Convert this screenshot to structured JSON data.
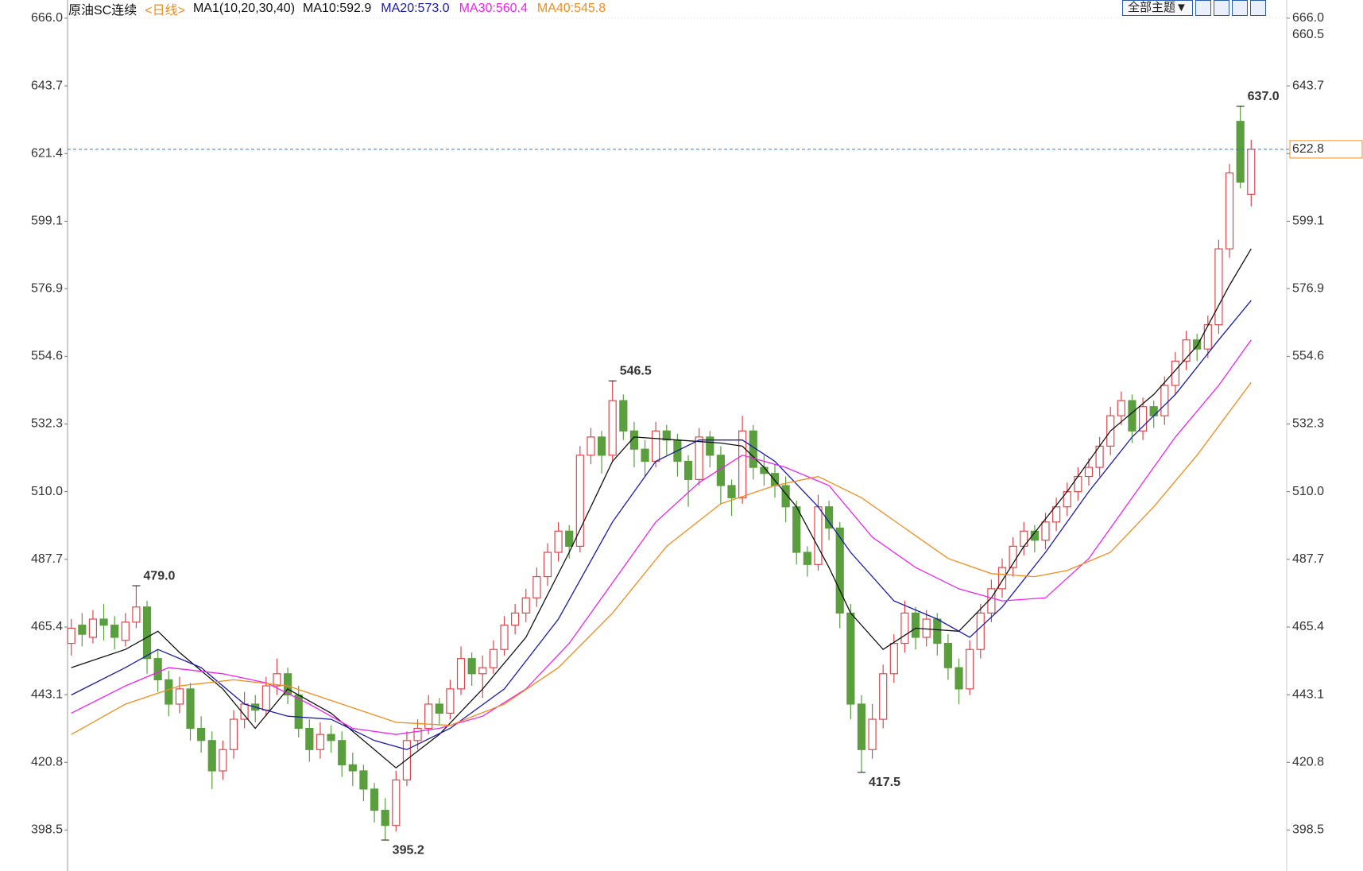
{
  "chart_data": {
    "type": "candlestick",
    "title": "原油SC连续",
    "period": "<日线>",
    "indicator": "MA1(10,20,30,40)",
    "theme_button": "全部主题▼",
    "ylim": [
      385,
      672
    ],
    "yticks": [
      {
        "value": 666,
        "label": "666.0"
      },
      643.7,
      621.4,
      599.1,
      576.9,
      554.6,
      532.3,
      {
        "value": 510,
        "label": "510.0"
      },
      487.7,
      465.4,
      443.1,
      420.8,
      398.5
    ],
    "up_color": "#e0474c",
    "down_color": "#5a9e3e",
    "ohlc": [
      [
        460,
        468,
        456,
        465
      ],
      [
        466,
        470,
        459,
        463
      ],
      [
        462,
        471,
        460,
        468
      ],
      [
        468,
        473,
        461,
        466
      ],
      [
        466,
        469,
        458,
        462
      ],
      [
        461,
        470,
        459,
        467
      ],
      [
        467,
        479,
        465,
        472
      ],
      [
        472,
        474,
        450,
        455
      ],
      [
        455,
        458,
        444,
        448
      ],
      [
        448,
        451,
        436,
        440
      ],
      [
        440,
        449,
        437,
        445
      ],
      [
        445,
        447,
        428,
        432
      ],
      [
        432,
        436,
        424,
        428
      ],
      [
        428,
        431,
        412,
        418
      ],
      [
        418,
        428,
        415,
        425
      ],
      [
        425,
        438,
        422,
        435
      ],
      [
        435,
        444,
        432,
        440
      ],
      [
        440,
        443,
        434,
        438
      ],
      [
        438,
        449,
        436,
        446
      ],
      [
        446,
        455,
        443,
        450
      ],
      [
        450,
        452,
        440,
        443
      ],
      [
        443,
        446,
        429,
        432
      ],
      [
        432,
        435,
        421,
        425
      ],
      [
        425,
        434,
        422,
        430
      ],
      [
        430,
        433,
        424,
        428
      ],
      [
        428,
        431,
        416,
        420
      ],
      [
        420,
        424,
        413,
        418
      ],
      [
        418,
        420,
        408,
        412
      ],
      [
        412,
        414,
        401,
        405
      ],
      [
        405,
        409,
        395.2,
        400
      ],
      [
        400,
        418,
        398,
        415
      ],
      [
        415,
        431,
        413,
        428
      ],
      [
        428,
        435,
        425,
        432
      ],
      [
        432,
        443,
        430,
        440
      ],
      [
        440,
        442,
        433,
        437
      ],
      [
        437,
        448,
        435,
        445
      ],
      [
        445,
        459,
        443,
        455
      ],
      [
        455,
        457,
        446,
        450
      ],
      [
        450,
        456,
        442,
        452
      ],
      [
        452,
        461,
        450,
        458
      ],
      [
        458,
        469,
        456,
        466
      ],
      [
        466,
        473,
        463,
        470
      ],
      [
        470,
        478,
        467,
        475
      ],
      [
        475,
        485,
        472,
        482
      ],
      [
        482,
        493,
        479,
        490
      ],
      [
        490,
        500,
        487,
        497
      ],
      [
        497,
        499,
        488,
        492
      ],
      [
        492,
        525,
        490,
        522
      ],
      [
        522,
        531,
        519,
        528
      ],
      [
        528,
        530,
        516,
        522
      ],
      [
        522,
        546.5,
        520,
        540
      ],
      [
        540,
        542,
        527,
        530
      ],
      [
        530,
        533,
        518,
        524
      ],
      [
        524,
        527,
        515,
        520
      ],
      [
        520,
        533,
        518,
        530
      ],
      [
        530,
        532,
        522,
        527
      ],
      [
        527,
        529,
        515,
        520
      ],
      [
        520,
        522,
        505,
        514
      ],
      [
        514,
        531,
        512,
        528
      ],
      [
        528,
        530,
        518,
        522
      ],
      [
        522,
        525,
        506,
        512
      ],
      [
        512,
        514,
        502,
        508
      ],
      [
        508,
        535,
        506,
        530
      ],
      [
        530,
        532,
        514,
        518
      ],
      [
        518,
        522,
        512,
        516
      ],
      [
        516,
        519,
        508,
        512
      ],
      [
        512,
        515,
        500,
        505
      ],
      [
        505,
        507,
        486,
        490
      ],
      [
        490,
        492,
        482,
        486
      ],
      [
        486,
        509,
        484,
        505
      ],
      [
        505,
        507,
        494,
        498
      ],
      [
        498,
        500,
        465,
        470
      ],
      [
        470,
        473,
        435,
        440
      ],
      [
        440,
        443,
        417.5,
        425
      ],
      [
        425,
        440,
        422,
        435
      ],
      [
        435,
        453,
        432,
        450
      ],
      [
        450,
        463,
        447,
        460
      ],
      [
        460,
        474,
        457,
        470
      ],
      [
        470,
        472,
        458,
        462
      ],
      [
        462,
        471,
        459,
        468
      ],
      [
        468,
        470,
        456,
        460
      ],
      [
        460,
        463,
        448,
        452
      ],
      [
        452,
        455,
        440,
        445
      ],
      [
        445,
        461,
        443,
        458
      ],
      [
        458,
        473,
        455,
        470
      ],
      [
        470,
        481,
        467,
        478
      ],
      [
        478,
        488,
        475,
        485
      ],
      [
        485,
        495,
        482,
        492
      ],
      [
        492,
        500,
        489,
        497
      ],
      [
        497,
        499,
        490,
        494
      ],
      [
        494,
        503,
        491,
        500
      ],
      [
        500,
        508,
        497,
        505
      ],
      [
        505,
        513,
        502,
        510
      ],
      [
        510,
        518,
        507,
        515
      ],
      [
        515,
        521,
        512,
        518
      ],
      [
        518,
        528,
        515,
        525
      ],
      [
        525,
        538,
        522,
        535
      ],
      [
        535,
        543,
        532,
        540
      ],
      [
        540,
        542,
        526,
        530
      ],
      [
        530,
        541,
        527,
        538
      ],
      [
        538,
        540,
        531,
        535
      ],
      [
        535,
        548,
        532,
        545
      ],
      [
        545,
        556,
        542,
        553
      ],
      [
        553,
        563,
        550,
        560
      ],
      [
        560,
        562,
        553,
        557
      ],
      [
        557,
        568,
        554,
        565
      ],
      [
        565,
        593,
        562,
        590
      ],
      [
        590,
        618,
        587,
        615
      ],
      [
        632,
        637,
        610,
        612
      ],
      [
        608,
        626,
        604,
        622.8
      ]
    ],
    "ma": [
      {
        "label": "MA10:592.9",
        "color": "#111111",
        "x": [
          0,
          5,
          8,
          10,
          14,
          17,
          20,
          24,
          28,
          30,
          34,
          38,
          42,
          46,
          50,
          52,
          56,
          60,
          62,
          64,
          67,
          70,
          72,
          75,
          78,
          82,
          85,
          88,
          92,
          96,
          100,
          104,
          107,
          109
        ],
        "values": [
          452,
          458,
          464,
          457,
          445,
          432,
          445,
          437,
          425,
          419,
          430,
          445,
          462,
          490,
          520,
          528,
          527,
          526,
          525,
          518,
          505,
          485,
          470,
          458,
          465,
          464,
          475,
          492,
          510,
          530,
          542,
          558,
          578,
          590
        ]
      },
      {
        "label": "MA20:573.0",
        "color": "#1a1aa6",
        "x": [
          0,
          5,
          8,
          12,
          16,
          20,
          24,
          28,
          31,
          35,
          40,
          45,
          50,
          54,
          58,
          62,
          65,
          69,
          72,
          76,
          80,
          83,
          86,
          90,
          94,
          98,
          102,
          106,
          109
        ],
        "values": [
          443,
          452,
          458,
          452,
          440,
          436,
          435,
          428,
          425,
          432,
          445,
          468,
          500,
          520,
          527,
          527,
          520,
          505,
          490,
          474,
          468,
          462,
          472,
          490,
          510,
          528,
          542,
          560,
          573
        ]
      },
      {
        "label": "MA30:560.4",
        "color": "#ee22ee",
        "x": [
          0,
          5,
          9,
          14,
          18,
          22,
          26,
          30,
          34,
          38,
          42,
          46,
          50,
          54,
          58,
          62,
          66,
          70,
          74,
          78,
          82,
          86,
          90,
          94,
          98,
          102,
          106,
          109
        ],
        "values": [
          437,
          446,
          452,
          450,
          447,
          440,
          432,
          430,
          432,
          436,
          445,
          460,
          480,
          500,
          513,
          522,
          518,
          512,
          495,
          485,
          478,
          474,
          475,
          488,
          508,
          528,
          545,
          560
        ]
      },
      {
        "label": "MA40:545.8",
        "color": "#f08c1e",
        "x": [
          0,
          5,
          10,
          15,
          20,
          25,
          30,
          35,
          40,
          45,
          50,
          55,
          60,
          65,
          69,
          73,
          77,
          81,
          85,
          89,
          92,
          96,
          100,
          104,
          109
        ],
        "values": [
          430,
          440,
          446,
          448,
          446,
          440,
          434,
          433,
          440,
          452,
          470,
          492,
          506,
          512,
          515,
          508,
          498,
          488,
          483,
          482,
          484,
          490,
          505,
          522,
          546
        ]
      }
    ],
    "high_marks": [
      {
        "value": 479,
        "label": "479.0"
      },
      {
        "value": 546.5,
        "label": "546.5"
      },
      {
        "value": 637,
        "label": "637.0"
      }
    ],
    "low_marks": [
      {
        "value": 395.2,
        "label": "395.2"
      },
      {
        "value": 417.5,
        "label": "417.5"
      }
    ],
    "upper_label": {
      "value": 660.5,
      "label": "660.5"
    },
    "last_price": {
      "value": 622.8,
      "label": "622.8"
    }
  }
}
